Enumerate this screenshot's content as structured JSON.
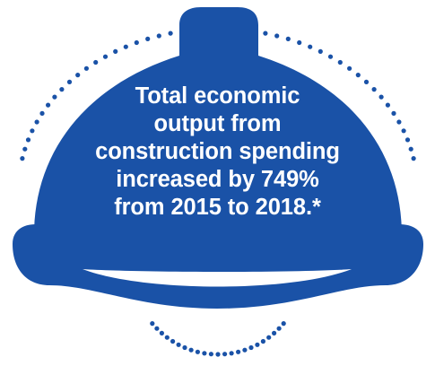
{
  "graphic": {
    "icon": "hard-hat-icon",
    "colors": {
      "helmet": "#1a52a7",
      "dots": "#1a52a7",
      "text": "#ffffff",
      "background": "#ffffff"
    },
    "statement_lines": [
      "Total economic",
      "output from",
      "construction spending",
      "increased by 749%",
      "from 2015 to 2018.*"
    ]
  }
}
